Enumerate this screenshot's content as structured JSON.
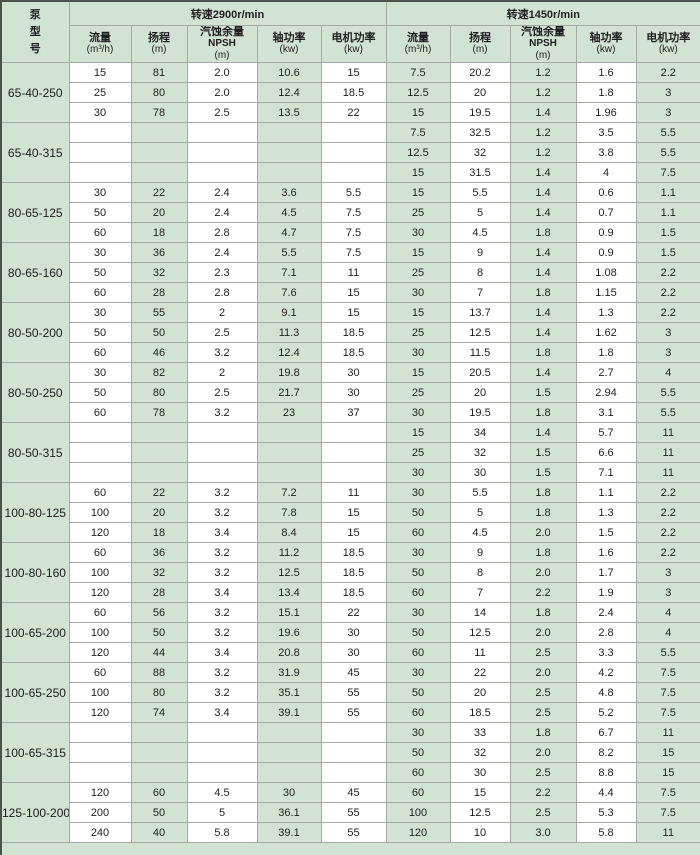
{
  "table": {
    "model_header_lines": [
      "泵",
      "型",
      "号"
    ],
    "group_headers": {
      "speed_2900": "转速2900r/min",
      "speed_1450": "转速1450r/min"
    },
    "columns": [
      {
        "name": "流量",
        "sub": "",
        "unit": "(m³/h)"
      },
      {
        "name": "扬程",
        "sub": "",
        "unit": "(m)"
      },
      {
        "name": "汽蚀余量",
        "sub": "NPSH",
        "unit": "(m)"
      },
      {
        "name": "轴功率",
        "sub": "",
        "unit": "(kw)"
      },
      {
        "name": "电机功率",
        "sub": "",
        "unit": "(kw)"
      }
    ],
    "sections": [
      {
        "model": "65-40-250",
        "rows": [
          {
            "s2900": [
              "15",
              "81",
              "2.0",
              "10.6",
              "15"
            ],
            "s1450": [
              "7.5",
              "20.2",
              "1.2",
              "1.6",
              "2.2"
            ]
          },
          {
            "s2900": [
              "25",
              "80",
              "2.0",
              "12.4",
              "18.5"
            ],
            "s1450": [
              "12.5",
              "20",
              "1.2",
              "1.8",
              "3"
            ]
          },
          {
            "s2900": [
              "30",
              "78",
              "2.5",
              "13.5",
              "22"
            ],
            "s1450": [
              "15",
              "19.5",
              "1.4",
              "1.96",
              "3"
            ]
          }
        ]
      },
      {
        "model": "65-40-315",
        "rows": [
          {
            "s2900": [
              "",
              "",
              "",
              "",
              ""
            ],
            "s1450": [
              "7.5",
              "32.5",
              "1.2",
              "3.5",
              "5.5"
            ]
          },
          {
            "s2900": [
              "",
              "",
              "",
              "",
              ""
            ],
            "s1450": [
              "12.5",
              "32",
              "1.2",
              "3.8",
              "5.5"
            ]
          },
          {
            "s2900": [
              "",
              "",
              "",
              "",
              ""
            ],
            "s1450": [
              "15",
              "31.5",
              "1.4",
              "4",
              "7.5"
            ]
          }
        ]
      },
      {
        "model": "80-65-125",
        "rows": [
          {
            "s2900": [
              "30",
              "22",
              "2.4",
              "3.6",
              "5.5"
            ],
            "s1450": [
              "15",
              "5.5",
              "1.4",
              "0.6",
              "1.1"
            ]
          },
          {
            "s2900": [
              "50",
              "20",
              "2.4",
              "4.5",
              "7.5"
            ],
            "s1450": [
              "25",
              "5",
              "1.4",
              "0.7",
              "1.1"
            ]
          },
          {
            "s2900": [
              "60",
              "18",
              "2.8",
              "4.7",
              "7.5"
            ],
            "s1450": [
              "30",
              "4.5",
              "1.8",
              "0.9",
              "1.5"
            ]
          }
        ]
      },
      {
        "model": "80-65-160",
        "rows": [
          {
            "s2900": [
              "30",
              "36",
              "2.4",
              "5.5",
              "7.5"
            ],
            "s1450": [
              "15",
              "9",
              "1.4",
              "0.9",
              "1.5"
            ]
          },
          {
            "s2900": [
              "50",
              "32",
              "2.3",
              "7.1",
              "11"
            ],
            "s1450": [
              "25",
              "8",
              "1.4",
              "1.08",
              "2.2"
            ]
          },
          {
            "s2900": [
              "60",
              "28",
              "2.8",
              "7.6",
              "15"
            ],
            "s1450": [
              "30",
              "7",
              "1.8",
              "1.15",
              "2.2"
            ]
          }
        ]
      },
      {
        "model": "80-50-200",
        "rows": [
          {
            "s2900": [
              "30",
              "55",
              "2",
              "9.1",
              "15"
            ],
            "s1450": [
              "15",
              "13.7",
              "1.4",
              "1.3",
              "2.2"
            ]
          },
          {
            "s2900": [
              "50",
              "50",
              "2.5",
              "11.3",
              "18.5"
            ],
            "s1450": [
              "25",
              "12.5",
              "1.4",
              "1.62",
              "3"
            ]
          },
          {
            "s2900": [
              "60",
              "46",
              "3.2",
              "12.4",
              "18.5"
            ],
            "s1450": [
              "30",
              "11.5",
              "1.8",
              "1.8",
              "3"
            ]
          }
        ]
      },
      {
        "model": "80-50-250",
        "rows": [
          {
            "s2900": [
              "30",
              "82",
              "2",
              "19.8",
              "30"
            ],
            "s1450": [
              "15",
              "20.5",
              "1.4",
              "2.7",
              "4"
            ]
          },
          {
            "s2900": [
              "50",
              "80",
              "2.5",
              "21.7",
              "30"
            ],
            "s1450": [
              "25",
              "20",
              "1.5",
              "2.94",
              "5.5"
            ]
          },
          {
            "s2900": [
              "60",
              "78",
              "3.2",
              "23",
              "37"
            ],
            "s1450": [
              "30",
              "19.5",
              "1.8",
              "3.1",
              "5.5"
            ]
          }
        ]
      },
      {
        "model": "80-50-315",
        "rows": [
          {
            "s2900": [
              "",
              "",
              "",
              "",
              ""
            ],
            "s1450": [
              "15",
              "34",
              "1.4",
              "5.7",
              "11"
            ]
          },
          {
            "s2900": [
              "",
              "",
              "",
              "",
              ""
            ],
            "s1450": [
              "25",
              "32",
              "1.5",
              "6.6",
              "11"
            ]
          },
          {
            "s2900": [
              "",
              "",
              "",
              "",
              ""
            ],
            "s1450": [
              "30",
              "30",
              "1.5",
              "7.1",
              "11"
            ]
          }
        ]
      },
      {
        "model": "100-80-125",
        "rows": [
          {
            "s2900": [
              "60",
              "22",
              "3.2",
              "7.2",
              "11"
            ],
            "s1450": [
              "30",
              "5.5",
              "1.8",
              "1.1",
              "2.2"
            ]
          },
          {
            "s2900": [
              "100",
              "20",
              "3.2",
              "7.8",
              "15"
            ],
            "s1450": [
              "50",
              "5",
              "1.8",
              "1.3",
              "2.2"
            ]
          },
          {
            "s2900": [
              "120",
              "18",
              "3.4",
              "8.4",
              "15"
            ],
            "s1450": [
              "60",
              "4.5",
              "2.0",
              "1.5",
              "2.2"
            ]
          }
        ]
      },
      {
        "model": "100-80-160",
        "rows": [
          {
            "s2900": [
              "60",
              "36",
              "3.2",
              "11.2",
              "18.5"
            ],
            "s1450": [
              "30",
              "9",
              "1.8",
              "1.6",
              "2.2"
            ]
          },
          {
            "s2900": [
              "100",
              "32",
              "3.2",
              "12.5",
              "18.5"
            ],
            "s1450": [
              "50",
              "8",
              "2.0",
              "1.7",
              "3"
            ]
          },
          {
            "s2900": [
              "120",
              "28",
              "3.4",
              "13.4",
              "18.5"
            ],
            "s1450": [
              "60",
              "7",
              "2.2",
              "1.9",
              "3"
            ]
          }
        ]
      },
      {
        "model": "100-65-200",
        "rows": [
          {
            "s2900": [
              "60",
              "56",
              "3.2",
              "15.1",
              "22"
            ],
            "s1450": [
              "30",
              "14",
              "1.8",
              "2.4",
              "4"
            ]
          },
          {
            "s2900": [
              "100",
              "50",
              "3.2",
              "19.6",
              "30"
            ],
            "s1450": [
              "50",
              "12.5",
              "2.0",
              "2.8",
              "4"
            ]
          },
          {
            "s2900": [
              "120",
              "44",
              "3.4",
              "20.8",
              "30"
            ],
            "s1450": [
              "60",
              "11",
              "2.5",
              "3.3",
              "5.5"
            ]
          }
        ]
      },
      {
        "model": "100-65-250",
        "rows": [
          {
            "s2900": [
              "60",
              "88",
              "3.2",
              "31.9",
              "45"
            ],
            "s1450": [
              "30",
              "22",
              "2.0",
              "4.2",
              "7.5"
            ]
          },
          {
            "s2900": [
              "100",
              "80",
              "3.2",
              "35.1",
              "55"
            ],
            "s1450": [
              "50",
              "20",
              "2.5",
              "4.8",
              "7.5"
            ]
          },
          {
            "s2900": [
              "120",
              "74",
              "3.4",
              "39.1",
              "55"
            ],
            "s1450": [
              "60",
              "18.5",
              "2.5",
              "5.2",
              "7.5"
            ]
          }
        ]
      },
      {
        "model": "100-65-315",
        "rows": [
          {
            "s2900": [
              "",
              "",
              "",
              "",
              ""
            ],
            "s1450": [
              "30",
              "33",
              "1.8",
              "6.7",
              "11"
            ]
          },
          {
            "s2900": [
              "",
              "",
              "",
              "",
              ""
            ],
            "s1450": [
              "50",
              "32",
              "2.0",
              "8.2",
              "15"
            ]
          },
          {
            "s2900": [
              "",
              "",
              "",
              "",
              ""
            ],
            "s1450": [
              "60",
              "30",
              "2.5",
              "8.8",
              "15"
            ]
          }
        ]
      },
      {
        "model": "125-100-200",
        "rows": [
          {
            "s2900": [
              "120",
              "60",
              "4.5",
              "30",
              "45"
            ],
            "s1450": [
              "60",
              "15",
              "2.2",
              "4.4",
              "7.5"
            ]
          },
          {
            "s2900": [
              "200",
              "50",
              "5",
              "36.1",
              "55"
            ],
            "s1450": [
              "100",
              "12.5",
              "2.5",
              "5.3",
              "7.5"
            ]
          },
          {
            "s2900": [
              "240",
              "40",
              "5.8",
              "39.1",
              "55"
            ],
            "s1450": [
              "120",
              "10",
              "3.0",
              "5.8",
              "11"
            ]
          }
        ]
      }
    ]
  },
  "colors": {
    "cell_green": "#d2e2d3",
    "border_light": "#a2aaa2",
    "border_dark": "#4c524c",
    "text": "#1f1f1f"
  }
}
